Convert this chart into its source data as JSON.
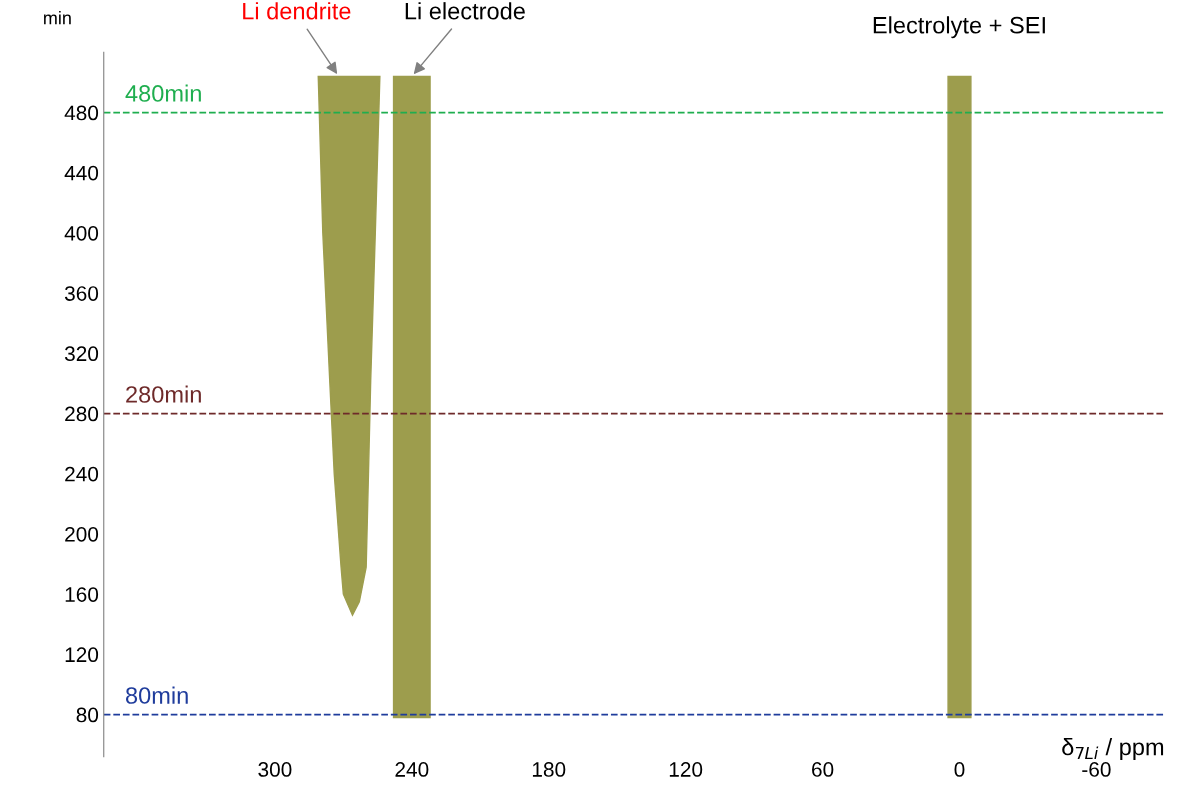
{
  "chart_data": {
    "type": "area",
    "xlabel": "δ$_{7Li}$ / ppm",
    "ylabel": "min",
    "xlim": [
      375,
      -90
    ],
    "xticks": [
      300,
      240,
      180,
      120,
      60,
      0,
      -60
    ],
    "ylim": [
      52,
      520
    ],
    "yticks": [
      80,
      120,
      160,
      200,
      240,
      280,
      320,
      360,
      400,
      440,
      480
    ],
    "series": [
      {
        "name": "Li dendrite",
        "color": "#8c8c2e",
        "x": [
          281,
          254,
          256,
          258,
          259,
          260,
          263,
          266,
          270,
          271,
          274,
          276,
          279,
          281
        ],
        "values": [
          504,
          504,
          400,
          303,
          240,
          178,
          155,
          146,
          160,
          178,
          240,
          303,
          400,
          504
        ]
      },
      {
        "name": "Li electrode",
        "color": "#8c8c2e",
        "x": [
          248,
          232,
          232,
          248,
          248
        ],
        "values": [
          78,
          78,
          504,
          504,
          78
        ]
      },
      {
        "name": "Electrolyte + SEI",
        "color": "#8c8c2e",
        "x": [
          5,
          -5,
          -5,
          5,
          5
        ],
        "values": [
          78,
          78,
          504,
          504,
          78
        ]
      }
    ],
    "ref_lines": [
      {
        "axis": "y",
        "value": 480,
        "label": "480min",
        "color": "#1fae4f",
        "line_style": "dashed"
      },
      {
        "axis": "y",
        "value": 280,
        "label": "280min",
        "color": "#6e2a2a",
        "line_style": "dashed"
      },
      {
        "axis": "y",
        "value": 80,
        "label": "80min",
        "color": "#1f3c9c",
        "line_style": "dashed"
      }
    ],
    "grid": false,
    "legend": false
  }
}
